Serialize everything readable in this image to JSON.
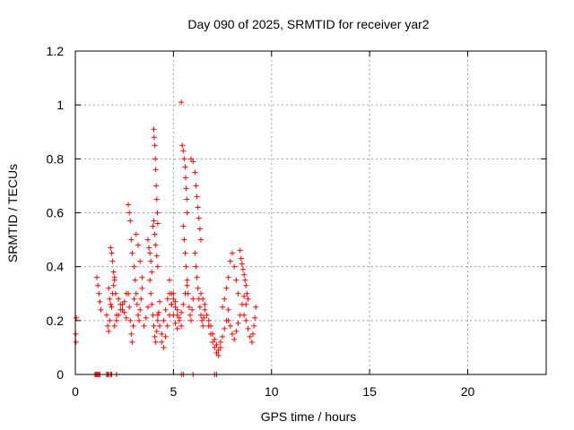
{
  "chart_data": {
    "type": "scatter",
    "title": "Day 090 of 2025, SRMTID for receiver yar2",
    "xlabel": "GPS time / hours",
    "ylabel": "SRMTID / TECUs",
    "xlim": [
      0,
      24
    ],
    "ylim": [
      0,
      1.2
    ],
    "x_ticks": [
      0,
      5,
      10,
      15,
      20
    ],
    "x_tick_labels": [
      "0",
      "5",
      "10",
      "15",
      "20"
    ],
    "y_ticks": [
      0,
      0.2,
      0.4,
      0.6,
      0.8,
      1.0,
      1.2
    ],
    "y_tick_labels": [
      "0",
      "0.2",
      "0.4",
      "0.6",
      "0.8",
      "1",
      "1.2"
    ],
    "grid": true,
    "marker": "plus",
    "series": [
      {
        "name": "SRMTID",
        "color": "#ff0000",
        "x": [
          0.02,
          0.03,
          0.05,
          1.0,
          1.05,
          1.1,
          1.15,
          1.2,
          1.25,
          1.6,
          1.65,
          1.7,
          1.8,
          1.85,
          2.1,
          1.1,
          1.15,
          1.2,
          1.25,
          1.3,
          1.6,
          1.65,
          1.7,
          1.75,
          1.8,
          1.85,
          1.9,
          1.95,
          2.0,
          2.05,
          1.7,
          1.75,
          1.8,
          1.85,
          1.9,
          1.95,
          2.0,
          2.1,
          2.2,
          2.3,
          2.4,
          2.5,
          2.6,
          2.0,
          2.1,
          2.2,
          2.3,
          2.4,
          2.5,
          2.6,
          2.7,
          2.75,
          2.8,
          2.85,
          2.9,
          3.0,
          2.7,
          2.75,
          2.8,
          2.85,
          2.9,
          2.95,
          3.0,
          3.05,
          3.1,
          3.2,
          3.3,
          3.4,
          3.1,
          3.15,
          3.2,
          3.25,
          3.3,
          3.35,
          3.4,
          3.5,
          3.6,
          3.7,
          3.7,
          3.75,
          3.8,
          3.85,
          3.9,
          3.95,
          4.0,
          4.05,
          4.1,
          4.15,
          4.2,
          3.8,
          3.85,
          3.9,
          3.95,
          4.0,
          4.05,
          4.1,
          4.15,
          4.2,
          4.25,
          4.3,
          4.0,
          4.02,
          4.05,
          4.08,
          4.1,
          4.12,
          4.15,
          4.18,
          4.2,
          4.2,
          4.3,
          4.4,
          4.5,
          4.6,
          4.7,
          4.8,
          4.9,
          5.0,
          5.1,
          5.2,
          4.4,
          4.5,
          4.6,
          4.7,
          4.8,
          4.9,
          5.0,
          5.1,
          5.2,
          5.3,
          5.4,
          4.8,
          4.9,
          5.0,
          5.1,
          5.2,
          5.3,
          5.4,
          5.5,
          5.6,
          5.7,
          5.4,
          5.45,
          5.5,
          5.55,
          5.6,
          5.62,
          5.65,
          5.68,
          5.7,
          5.5,
          5.55,
          5.6,
          5.65,
          5.7,
          5.75,
          5.8,
          5.85,
          5.9,
          5.95,
          6.0,
          5.9,
          6.0,
          6.1,
          6.15,
          6.2,
          6.25,
          6.3,
          6.35,
          6.4,
          6.1,
          6.15,
          6.2,
          6.25,
          6.3,
          6.35,
          6.4,
          6.45,
          6.5,
          6.55,
          6.6,
          6.4,
          6.5,
          6.6,
          6.7,
          6.8,
          6.9,
          7.0,
          7.1,
          7.2,
          7.3,
          7.4,
          6.8,
          6.9,
          7.0,
          7.1,
          7.2,
          7.3,
          7.4,
          7.5,
          7.6,
          7.7,
          7.8,
          7.5,
          7.6,
          7.7,
          7.8,
          7.9,
          8.0,
          8.1,
          8.2,
          8.3,
          7.8,
          7.9,
          8.0,
          8.1,
          8.2,
          8.3,
          8.4,
          8.5,
          8.6,
          8.7,
          8.4,
          8.45,
          8.5,
          8.55,
          8.6,
          8.65,
          8.7,
          8.75,
          8.8,
          8.6,
          8.7,
          8.8,
          8.9,
          9.0,
          9.05,
          9.1,
          9.15,
          9.2,
          5.4,
          5.5,
          6.0,
          7.1,
          7.2
        ],
        "y": [
          0.15,
          0.12,
          0.21,
          0.0,
          0.0,
          0.0,
          0.0,
          0.0,
          0.0,
          0.0,
          0.0,
          0.0,
          0.0,
          0.0,
          0.0,
          0.36,
          0.33,
          0.3,
          0.27,
          0.24,
          0.22,
          0.18,
          0.16,
          0.2,
          0.47,
          0.45,
          0.42,
          0.38,
          0.35,
          0.3,
          0.32,
          0.28,
          0.26,
          0.25,
          0.3,
          0.33,
          0.36,
          0.22,
          0.28,
          0.26,
          0.24,
          0.27,
          0.3,
          0.18,
          0.2,
          0.22,
          0.24,
          0.26,
          0.23,
          0.21,
          0.63,
          0.6,
          0.57,
          0.5,
          0.45,
          0.4,
          0.3,
          0.25,
          0.2,
          0.15,
          0.12,
          0.18,
          0.28,
          0.35,
          0.52,
          0.48,
          0.42,
          0.36,
          0.3,
          0.26,
          0.22,
          0.2,
          0.24,
          0.28,
          0.32,
          0.18,
          0.21,
          0.25,
          0.5,
          0.47,
          0.45,
          0.42,
          0.38,
          0.55,
          0.57,
          0.52,
          0.48,
          0.44,
          0.4,
          0.35,
          0.3,
          0.26,
          0.22,
          0.18,
          0.14,
          0.12,
          0.16,
          0.2,
          0.23,
          0.27,
          0.91,
          0.88,
          0.85,
          0.8,
          0.76,
          0.7,
          0.65,
          0.6,
          0.56,
          0.22,
          0.18,
          0.15,
          0.2,
          0.24,
          0.28,
          0.3,
          0.26,
          0.22,
          0.19,
          0.17,
          0.12,
          0.1,
          0.14,
          0.18,
          0.22,
          0.26,
          0.3,
          0.27,
          0.24,
          0.21,
          0.18,
          0.35,
          0.3,
          0.28,
          0.25,
          0.22,
          0.2,
          0.23,
          0.26,
          0.3,
          0.33,
          1.01,
          0.85,
          0.83,
          0.8,
          0.77,
          0.73,
          0.69,
          0.65,
          0.6,
          0.55,
          0.5,
          0.45,
          0.4,
          0.35,
          0.3,
          0.25,
          0.22,
          0.2,
          0.24,
          0.28,
          0.8,
          0.79,
          0.75,
          0.7,
          0.66,
          0.62,
          0.58,
          0.54,
          0.5,
          0.45,
          0.4,
          0.36,
          0.32,
          0.28,
          0.25,
          0.22,
          0.2,
          0.18,
          0.21,
          0.24,
          0.3,
          0.28,
          0.26,
          0.22,
          0.18,
          0.15,
          0.12,
          0.1,
          0.08,
          0.07,
          0.1,
          0.2,
          0.18,
          0.15,
          0.13,
          0.11,
          0.09,
          0.12,
          0.14,
          0.17,
          0.2,
          0.24,
          0.25,
          0.28,
          0.32,
          0.36,
          0.42,
          0.45,
          0.4,
          0.35,
          0.3,
          0.2,
          0.18,
          0.15,
          0.13,
          0.16,
          0.19,
          0.22,
          0.26,
          0.29,
          0.26,
          0.46,
          0.43,
          0.41,
          0.39,
          0.37,
          0.35,
          0.33,
          0.3,
          0.28,
          0.22,
          0.2,
          0.17,
          0.14,
          0.12,
          0.15,
          0.18,
          0.21,
          0.25,
          0.0,
          0.0,
          0.0,
          0.0,
          0.0
        ]
      }
    ]
  }
}
